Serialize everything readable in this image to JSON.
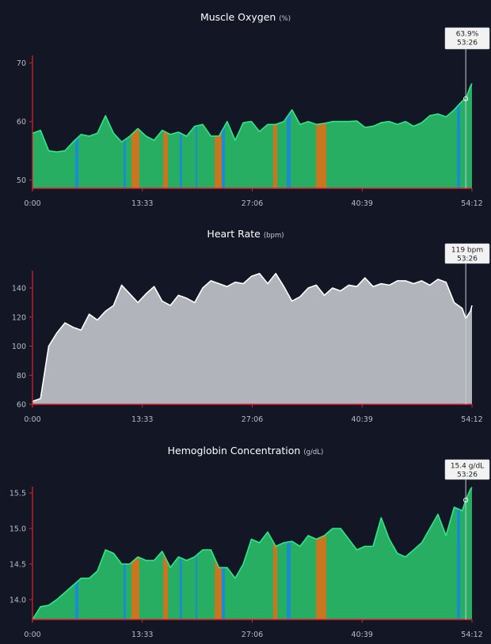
{
  "chart_data": [
    {
      "type": "area",
      "title": "Muscle Oxygen",
      "unit": "(%)",
      "ylim": [
        48.6,
        71.3
      ],
      "yticks": [
        "50",
        "60",
        "70"
      ],
      "xticks": [
        "0:00",
        "13:33",
        "27:06",
        "40:39",
        "54:12"
      ],
      "fill_color": "#27ae62",
      "line_color": "#2ee88a",
      "x": [
        "0:00",
        "1:00",
        "2:00",
        "3:00",
        "4:00",
        "5:00",
        "6:00",
        "7:00",
        "8:00",
        "9:00",
        "10:00",
        "11:00",
        "12:00",
        "13:00",
        "14:00",
        "15:00",
        "16:00",
        "17:00",
        "18:00",
        "19:00",
        "20:00",
        "21:00",
        "22:00",
        "23:00",
        "24:00",
        "25:00",
        "26:00",
        "27:00",
        "28:00",
        "29:00",
        "30:00",
        "31:00",
        "32:00",
        "33:00",
        "34:00",
        "35:00",
        "36:00",
        "37:00",
        "38:00",
        "39:00",
        "40:00",
        "41:00",
        "42:00",
        "43:00",
        "44:00",
        "45:00",
        "46:00",
        "47:00",
        "48:00",
        "49:00",
        "50:00",
        "51:00",
        "52:00",
        "53:00",
        "53:26",
        "54:00",
        "54:12"
      ],
      "values": [
        58,
        58.5,
        55,
        54.8,
        55,
        56.5,
        57.8,
        57.5,
        58,
        61,
        58,
        56.5,
        57.5,
        58.8,
        57.5,
        56.8,
        58.5,
        57.8,
        58.2,
        57.5,
        59.2,
        59.5,
        57.5,
        57.5,
        60,
        56.8,
        59.8,
        60,
        58.3,
        59.5,
        59.5,
        60,
        62,
        59.5,
        60,
        59.5,
        59.7,
        60,
        60,
        60,
        60.1,
        59,
        59.2,
        59.8,
        60,
        59.5,
        60,
        59.2,
        59.8,
        61,
        61.3,
        60.8,
        62,
        63.5,
        63.9,
        66,
        66.5
      ],
      "tooltip": {
        "value": "63.9%",
        "time": "53:26"
      }
    },
    {
      "type": "area",
      "title": "Heart Rate",
      "unit": "(bpm)",
      "ylim": [
        60,
        152
      ],
      "yticks": [
        "60",
        "80",
        "100",
        "120",
        "140"
      ],
      "xticks": [
        "0:00",
        "13:33",
        "27:06",
        "40:39",
        "54:12"
      ],
      "fill_color": "#b1b4bb",
      "line_color": "#ffffff",
      "x": [
        "0:00",
        "1:00",
        "2:00",
        "3:00",
        "4:00",
        "5:00",
        "6:00",
        "7:00",
        "8:00",
        "9:00",
        "10:00",
        "11:00",
        "12:00",
        "13:00",
        "14:00",
        "15:00",
        "16:00",
        "17:00",
        "18:00",
        "19:00",
        "20:00",
        "21:00",
        "22:00",
        "23:00",
        "24:00",
        "25:00",
        "26:00",
        "27:00",
        "28:00",
        "29:00",
        "30:00",
        "31:00",
        "32:00",
        "33:00",
        "34:00",
        "35:00",
        "36:00",
        "37:00",
        "38:00",
        "39:00",
        "40:00",
        "41:00",
        "42:00",
        "43:00",
        "44:00",
        "45:00",
        "46:00",
        "47:00",
        "48:00",
        "49:00",
        "50:00",
        "51:00",
        "52:00",
        "53:00",
        "53:26",
        "54:00",
        "54:12"
      ],
      "values": [
        62,
        64,
        100,
        109,
        116,
        113,
        111,
        122,
        118,
        124,
        128,
        142,
        136,
        130,
        136,
        141,
        131,
        128,
        135,
        133,
        130,
        140,
        145,
        143,
        141,
        144,
        143,
        148,
        150,
        143,
        150,
        141,
        131,
        134,
        140,
        142,
        135,
        140,
        138,
        142,
        141,
        147,
        141,
        143,
        142,
        145,
        145,
        143,
        145,
        142,
        146,
        144,
        130,
        126,
        119,
        124,
        128
      ],
      "tooltip": {
        "value": "119 bpm",
        "time": "53:26"
      }
    },
    {
      "type": "area",
      "title": "Hemoglobin Concentration",
      "unit": "(g/dL)",
      "ylim": [
        13.72,
        15.59
      ],
      "yticks": [
        "14.0",
        "14.5",
        "15.0",
        "15.5"
      ],
      "xticks": [
        "0:00",
        "13:33",
        "27:06",
        "40:39",
        "54:12"
      ],
      "fill_color": "#27ae62",
      "line_color": "#2ee88a",
      "x": [
        "0:00",
        "1:00",
        "2:00",
        "3:00",
        "4:00",
        "5:00",
        "6:00",
        "7:00",
        "8:00",
        "9:00",
        "10:00",
        "11:00",
        "12:00",
        "13:00",
        "14:00",
        "15:00",
        "16:00",
        "17:00",
        "18:00",
        "19:00",
        "20:00",
        "21:00",
        "22:00",
        "23:00",
        "24:00",
        "25:00",
        "26:00",
        "27:00",
        "28:00",
        "29:00",
        "30:00",
        "31:00",
        "32:00",
        "33:00",
        "34:00",
        "35:00",
        "36:00",
        "37:00",
        "38:00",
        "39:00",
        "40:00",
        "41:00",
        "42:00",
        "43:00",
        "44:00",
        "45:00",
        "46:00",
        "47:00",
        "48:00",
        "49:00",
        "50:00",
        "51:00",
        "52:00",
        "53:00",
        "53:26",
        "54:00",
        "54:12"
      ],
      "values": [
        13.72,
        13.9,
        13.92,
        14.0,
        14.1,
        14.2,
        14.3,
        14.3,
        14.4,
        14.7,
        14.65,
        14.5,
        14.5,
        14.6,
        14.55,
        14.55,
        14.68,
        14.45,
        14.6,
        14.55,
        14.6,
        14.7,
        14.7,
        14.45,
        14.45,
        14.3,
        14.5,
        14.85,
        14.8,
        14.95,
        14.75,
        14.8,
        14.82,
        14.75,
        14.9,
        14.85,
        14.9,
        15.0,
        15.0,
        14.85,
        14.7,
        14.75,
        14.75,
        15.15,
        14.85,
        14.65,
        14.6,
        14.7,
        14.8,
        15.0,
        15.2,
        14.9,
        15.3,
        15.25,
        15.4,
        15.55,
        15.58
      ],
      "tooltip": {
        "value": "15.4 g/dL",
        "time": "53:26"
      }
    }
  ],
  "highlight_intervals": [
    {
      "start": "5:16",
      "end": "5:40",
      "color": "#1a8cd0"
    },
    {
      "start": "11:14",
      "end": "11:31",
      "color": "#1a8cd0"
    },
    {
      "start": "12:12",
      "end": "13:11",
      "color": "#c8761f"
    },
    {
      "start": "16:07",
      "end": "16:42",
      "color": "#c8761f"
    },
    {
      "start": "18:10",
      "end": "18:27",
      "color": "#1a8cd0"
    },
    {
      "start": "20:07",
      "end": "20:19",
      "color": "#1a8cd0"
    },
    {
      "start": "22:28",
      "end": "23:20",
      "color": "#c8761f"
    },
    {
      "start": "23:20",
      "end": "23:44",
      "color": "#1a8cd0"
    },
    {
      "start": "29:41",
      "end": "30:11",
      "color": "#c8761f"
    },
    {
      "start": "31:21",
      "end": "31:50",
      "color": "#1a8cd0"
    },
    {
      "start": "34:58",
      "end": "36:14",
      "color": "#c8761f"
    },
    {
      "start": "52:21",
      "end": "52:44",
      "color": "#1a8cd0"
    }
  ],
  "cursor_time": "53:26",
  "axis_color": "#e0202e",
  "background": "#121625"
}
